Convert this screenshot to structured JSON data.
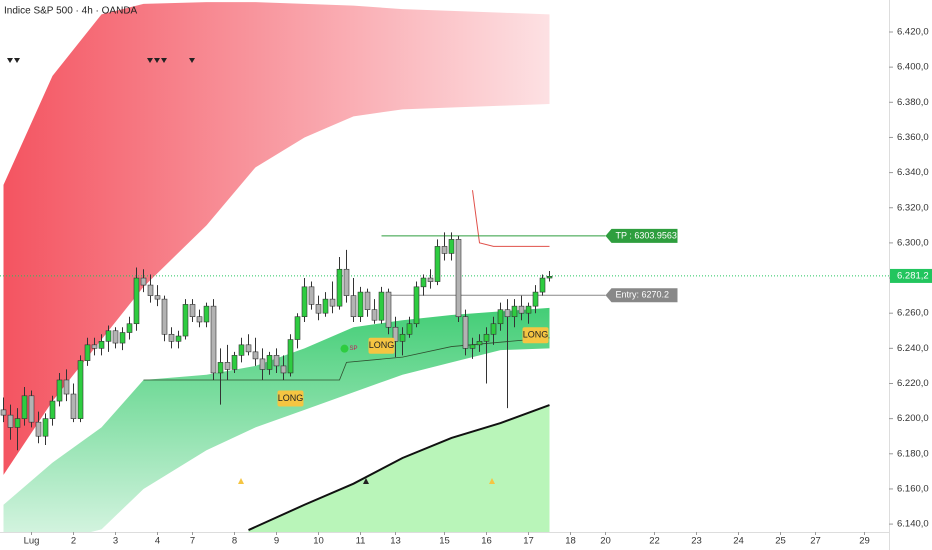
{
  "chart_data": {
    "type": "candlestick",
    "title": "Indice S&P 500 · 4h · OANDA",
    "up_color": "#2ecc40",
    "down_color": "#b3b3b3",
    "xlim": [
      -0.5,
      126.5
    ],
    "ylim": [
      6135.5,
      6438.2
    ],
    "grid": false,
    "xticks": [
      {
        "value": 4,
        "label": "Lug"
      },
      {
        "value": 10,
        "label": "2"
      },
      {
        "value": 16,
        "label": "3"
      },
      {
        "value": 22,
        "label": "4"
      },
      {
        "value": 27,
        "label": "7"
      },
      {
        "value": 33,
        "label": "8"
      },
      {
        "value": 39,
        "label": "9"
      },
      {
        "value": 45,
        "label": "10"
      },
      {
        "value": 51,
        "label": "11"
      },
      {
        "value": 56,
        "label": "13"
      },
      {
        "value": 63,
        "label": "15"
      },
      {
        "value": 69,
        "label": "16"
      },
      {
        "value": 75,
        "label": "17"
      },
      {
        "value": 81,
        "label": "18"
      },
      {
        "value": 86,
        "label": "20"
      },
      {
        "value": 93,
        "label": "22"
      },
      {
        "value": 99,
        "label": "23"
      },
      {
        "value": 105,
        "label": "24"
      },
      {
        "value": 111,
        "label": "25"
      },
      {
        "value": 116,
        "label": "27"
      },
      {
        "value": 123,
        "label": "29"
      }
    ],
    "yticks": [
      {
        "value": 6140,
        "label": "6.140,0"
      },
      {
        "value": 6160,
        "label": "6.160,0"
      },
      {
        "value": 6180,
        "label": "6.180,0"
      },
      {
        "value": 6200,
        "label": "6.200,0"
      },
      {
        "value": 6220,
        "label": "6.220,0"
      },
      {
        "value": 6240,
        "label": "6.240,0"
      },
      {
        "value": 6260,
        "label": "6.260,0"
      },
      {
        "value": 6280,
        "label": "6.280,0"
      },
      {
        "value": 6300,
        "label": "6.300,0"
      },
      {
        "value": 6320,
        "label": "6.320,0"
      },
      {
        "value": 6340,
        "label": "6.340,0"
      },
      {
        "value": 6360,
        "label": "6.360,0"
      },
      {
        "value": 6380,
        "label": "6.380,0"
      },
      {
        "value": 6400,
        "label": "6.400,0"
      },
      {
        "value": 6420,
        "label": "6.420,0"
      }
    ],
    "candles": {
      "open": [
        6205,
        6202,
        6195,
        6200,
        6213,
        6198,
        6190,
        6200,
        6210,
        6222,
        6214,
        6200,
        6233,
        6242,
        6240,
        6244,
        6250,
        6243,
        6249,
        6254,
        6280,
        6276,
        6270,
        6268,
        6248,
        6244,
        6247,
        6265,
        6258,
        6255,
        6264,
        6226,
        6232,
        6228,
        6236,
        6242,
        6238,
        6234,
        6228,
        6236,
        6230,
        6226,
        6245,
        6258,
        6275,
        6265,
        6260,
        6268,
        6264,
        6285,
        6270,
        6258,
        6272,
        6262,
        6256,
        6272,
        6252,
        6244,
        6248,
        6254,
        6275,
        6280,
        6278,
        6298,
        6294,
        6302,
        6258,
        6240,
        6242,
        6244,
        6248,
        6254,
        6262,
        6258,
        6264,
        6260,
        6264,
        6272,
        6280
      ],
      "high": [
        6212,
        6208,
        6206,
        6218,
        6216,
        6204,
        6203,
        6213,
        6226,
        6228,
        6220,
        6236,
        6246,
        6246,
        6248,
        6253,
        6252,
        6252,
        6258,
        6286,
        6285,
        6282,
        6276,
        6270,
        6252,
        6250,
        6268,
        6268,
        6262,
        6266,
        6268,
        6240,
        6242,
        6238,
        6246,
        6248,
        6246,
        6240,
        6238,
        6240,
        6236,
        6248,
        6260,
        6280,
        6278,
        6270,
        6272,
        6278,
        6292,
        6296,
        6280,
        6275,
        6274,
        6268,
        6275,
        6274,
        6258,
        6252,
        6258,
        6278,
        6282,
        6285,
        6302,
        6306,
        6306,
        6304,
        6262,
        6246,
        6248,
        6252,
        6258,
        6266,
        6268,
        6268,
        6270,
        6266,
        6276,
        6282,
        6284
      ],
      "low": [
        6198,
        6188,
        6182,
        6196,
        6195,
        6186,
        6185,
        6196,
        6207,
        6210,
        6198,
        6198,
        6230,
        6236,
        6236,
        6238,
        6240,
        6239,
        6245,
        6250,
        6272,
        6266,
        6264,
        6244,
        6240,
        6240,
        6245,
        6255,
        6252,
        6252,
        6222,
        6208,
        6222,
        6226,
        6232,
        6236,
        6230,
        6222,
        6225,
        6226,
        6222,
        6224,
        6240,
        6255,
        6262,
        6256,
        6258,
        6260,
        6262,
        6266,
        6255,
        6255,
        6258,
        6254,
        6254,
        6248,
        6235,
        6236,
        6246,
        6252,
        6270,
        6274,
        6276,
        6290,
        6290,
        6255,
        6236,
        6234,
        6238,
        6220,
        6242,
        6250,
        6206,
        6252,
        6256,
        6254,
        6260,
        6270,
        6278
      ],
      "close": [
        6202,
        6195,
        6200,
        6213,
        6198,
        6190,
        6200,
        6210,
        6222,
        6214,
        6200,
        6233,
        6242,
        6240,
        6244,
        6250,
        6243,
        6249,
        6254,
        6280,
        6276,
        6270,
        6268,
        6248,
        6244,
        6247,
        6265,
        6258,
        6255,
        6264,
        6226,
        6232,
        6228,
        6236,
        6242,
        6238,
        6234,
        6228,
        6236,
        6230,
        6226,
        6245,
        6258,
        6275,
        6265,
        6260,
        6268,
        6264,
        6285,
        6270,
        6258,
        6272,
        6262,
        6256,
        6272,
        6252,
        6244,
        6248,
        6254,
        6275,
        6280,
        6278,
        6298,
        6294,
        6302,
        6258,
        6240,
        6242,
        6244,
        6248,
        6254,
        6262,
        6258,
        6264,
        6260,
        6264,
        6272,
        6280,
        6281
      ]
    },
    "overlays": [
      {
        "type": "band",
        "color": "#f23645",
        "gradient": "horizontal",
        "x": [
          0,
          7,
          14,
          20,
          29,
          36,
          43,
          50,
          57,
          64,
          71,
          78
        ],
        "upper": [
          6333,
          6395,
          6430,
          6436,
          6437,
          6437,
          6436,
          6435,
          6433,
          6432,
          6431,
          6430
        ],
        "lower": [
          6168,
          6210,
          6245,
          6275,
          6310,
          6343,
          6360,
          6372,
          6376,
          6377,
          6378,
          6379
        ]
      },
      {
        "type": "band",
        "color": "#22c55e",
        "gradient": "vertical",
        "x": [
          0,
          7,
          14,
          20,
          29,
          36,
          43,
          50,
          57,
          64,
          71,
          78
        ],
        "upper": [
          6151,
          6175,
          6195,
          6222,
          6225,
          6230,
          6240,
          6252,
          6256,
          6259,
          6261,
          6263
        ],
        "lower": [
          6125,
          6130,
          6137,
          6160,
          6182,
          6195,
          6205,
          6215,
          6225,
          6232,
          6239,
          6240
        ]
      },
      {
        "type": "line",
        "color": "#111111",
        "width": 2,
        "fill": "#b9f5b9",
        "x": [
          35,
          43,
          50,
          57,
          64,
          71,
          78
        ],
        "values": [
          6136.6,
          6151,
          6163,
          6177.6,
          6189,
          6197.5,
          6207.7
        ]
      },
      {
        "type": "line",
        "color": "#2f4f2f",
        "width": 0.8,
        "x": [
          20,
          48,
          49,
          57,
          64,
          78
        ],
        "values": [
          6222,
          6222,
          6232,
          6235,
          6241,
          6246
        ]
      },
      {
        "type": "line",
        "color": "#e0504a",
        "width": 1,
        "x": [
          67,
          68,
          70,
          78
        ],
        "values": [
          6330,
          6300,
          6298,
          6298
        ]
      }
    ],
    "levels": [
      {
        "value": 6303.9563,
        "label": "TP : 6303.9563",
        "x": [
          54,
          86
        ],
        "color": "#2e9e3e"
      },
      {
        "value": 6270.2,
        "label": "Entry: 6270.2",
        "x": [
          55,
          86
        ],
        "color": "#888888"
      }
    ],
    "last_price": {
      "value": 6281.2,
      "label": "6.281,2",
      "color": "#22c55e"
    },
    "signals": [
      {
        "label": "LONG",
        "x": 41
      },
      {
        "label": "LONG",
        "x": 54
      },
      {
        "label": "LONG",
        "x": 76
      },
      {
        "label": "SP",
        "x": 49
      }
    ]
  }
}
